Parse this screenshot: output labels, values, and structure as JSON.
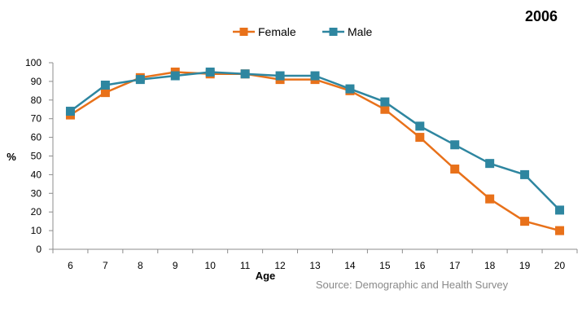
{
  "chart_data": {
    "type": "line",
    "title": "2006",
    "xlabel": "Age",
    "ylabel": "%",
    "ylim": [
      0,
      100
    ],
    "yticks": [
      0,
      10,
      20,
      30,
      40,
      50,
      60,
      70,
      80,
      90,
      100
    ],
    "x": [
      6,
      7,
      8,
      9,
      10,
      11,
      12,
      13,
      14,
      15,
      16,
      17,
      18,
      19,
      20
    ],
    "series": [
      {
        "name": "Female",
        "color": "#E8711A",
        "values": [
          72,
          84,
          92,
          95,
          94,
          94,
          91,
          91,
          85,
          75,
          60,
          43,
          27,
          15,
          10
        ]
      },
      {
        "name": "Male",
        "color": "#2E86A0",
        "values": [
          74,
          88,
          91,
          93,
          95,
          94,
          93,
          93,
          86,
          79,
          66,
          56,
          46,
          40,
          21
        ]
      }
    ],
    "legend_position": "top-center",
    "grid": false,
    "source": "Source: Demographic and Health Survey"
  }
}
